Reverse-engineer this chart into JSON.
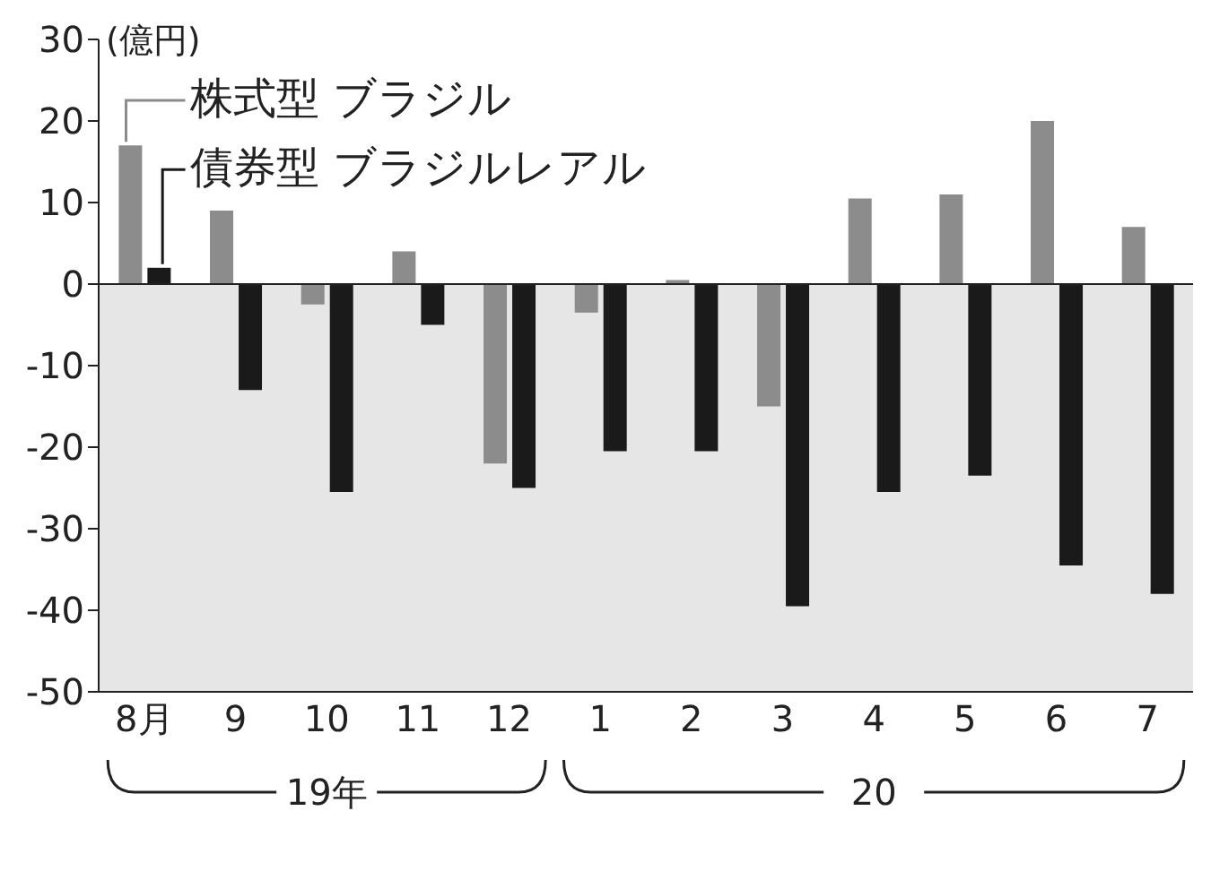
{
  "chart_data": {
    "type": "bar",
    "ylabel": "(億円)",
    "categories": [
      "8月",
      "9",
      "10",
      "11",
      "12",
      "1",
      "2",
      "3",
      "4",
      "5",
      "6",
      "7"
    ],
    "series": [
      {
        "name": "株式型 ブラジル",
        "color": "#8c8c8c",
        "values": [
          17,
          9,
          -2.5,
          4,
          -22,
          -3.5,
          0.5,
          -15,
          10.5,
          11,
          20,
          7
        ]
      },
      {
        "name": "債券型 ブラジルレアル",
        "color": "#1a1a1a",
        "values": [
          2,
          -13,
          -25.5,
          -5,
          -25,
          -20.5,
          -20.5,
          -39.5,
          -25.5,
          -23.5,
          -34.5,
          -38
        ]
      }
    ],
    "ylim": [
      -50,
      30
    ],
    "yticks": [
      -50,
      -40,
      -30,
      -20,
      -10,
      0,
      10,
      20,
      30
    ],
    "bands": [
      {
        "axis": "y",
        "from": -50,
        "to": 0,
        "color": "#e6e6e6"
      }
    ],
    "annotations": [
      "19年",
      "20"
    ]
  }
}
